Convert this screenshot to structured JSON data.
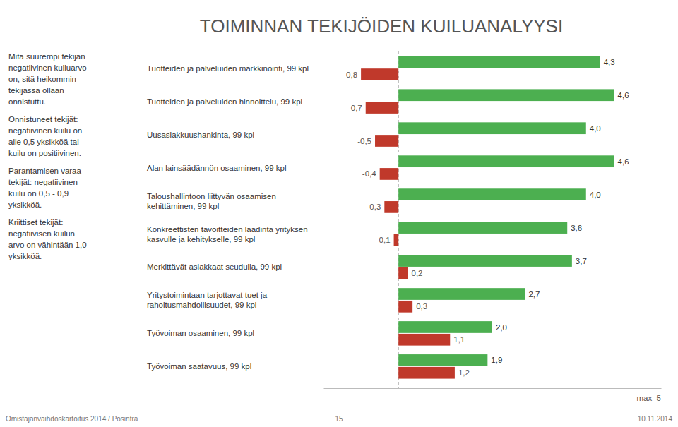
{
  "chart_data": {
    "type": "bar",
    "orientation": "horizontal",
    "title": "TOIMINNAN TEKIJÖIDEN KUILUANALYYSI",
    "categories": [
      "Tuotteiden ja palveluiden markkinointi, 99 kpl",
      "Tuotteiden ja palveluiden hinnoittelu, 99 kpl",
      "Uusasiakkuushankinta, 99 kpl",
      "Alan lainsäädännön osaaminen, 99 kpl",
      "Taloushallintoon liittyvän osaamisen kehittäminen, 99 kpl",
      "Konkreettisten tavoitteiden laadinta yrityksen kasvulle ja kehitykselle, 99 kpl",
      "Merkittävät asiakkaat seudulla, 99 kpl",
      "Yritystoimintaan tarjottavat tuet ja rahoitusmahdollisuudet, 99 kpl",
      "Työvoiman osaaminen, 99 kpl",
      "Työvoiman saatavuus, 99 kpl"
    ],
    "series": [
      {
        "color": "#4CAF50",
        "values": [
          4.3,
          4.6,
          4.0,
          4.6,
          4.0,
          3.6,
          3.7,
          2.7,
          2.0,
          1.9
        ],
        "value_labels": [
          "4,3",
          "4,6",
          "4,0",
          "4,6",
          "4,0",
          "3,6",
          "3,7",
          "2,7",
          "2,0",
          "1,9"
        ]
      },
      {
        "color": "#C0392B",
        "values": [
          -0.8,
          -0.7,
          -0.5,
          -0.4,
          -0.3,
          -0.1,
          0.2,
          0.3,
          1.1,
          1.2
        ],
        "value_labels": [
          "-0,8",
          "-0,7",
          "-0,5",
          "-0,4",
          "-0,3",
          "-0,1",
          "0,2",
          "0,3",
          "1,1",
          "1,2"
        ]
      }
    ],
    "xlim": [
      -1.6,
      5.6
    ],
    "tick_labels": false,
    "data_labels": true,
    "annotations": {
      "sidebar": [
        [
          "Mitä suurempi tekijän",
          "negatiivinen kuiluarvo",
          "on, sitä heikommin",
          "tekijässä ollaan",
          "onnistuttu."
        ],
        [
          "Onnistuneet tekijät:",
          "negatiivinen kuilu on",
          "alle 0,5 yksikköä tai",
          "kuilu on positiivinen."
        ],
        [
          "Parantamisen varaa -",
          "tekijät: negatiivinen",
          "kuilu on 0,5 - 0,9",
          "yksikköä."
        ],
        [
          "Kriittiset tekijät:",
          "negatiivisen kuilun",
          "arvo on vähintään 1,0",
          "yksikköä."
        ]
      ],
      "max_label": "max  5",
      "footer": [
        "Omistajanvaihdoskartoitus 2014 / Posintra",
        "15",
        "10.11.2014"
      ]
    }
  }
}
